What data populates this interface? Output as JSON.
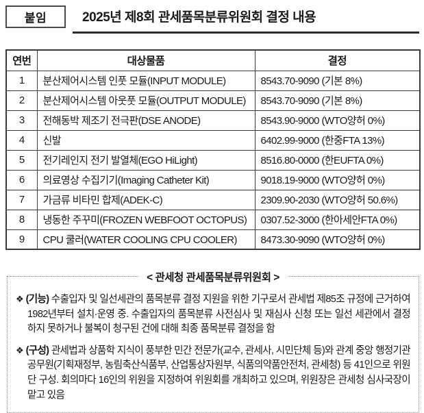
{
  "header": {
    "badge": "붙임",
    "title": "2025년 제8회 관세품목분류위원회 결정 내용"
  },
  "table": {
    "headers": {
      "no": "연번",
      "item": "대상물품",
      "decision": "결정"
    },
    "rows": [
      {
        "no": "1",
        "item": "분산제어시스템 인풋 모듈(INPUT MODULE)",
        "decision": "8543.70-9090 (기본 8%)"
      },
      {
        "no": "2",
        "item": "분산제어시스템 아웃풋 모듈(OUTPUT MODULE)",
        "decision": "8543.70-9090 (기본 8%)"
      },
      {
        "no": "3",
        "item": "전해동박 제조기 전극판(DSE ANODE)",
        "decision": "8543.90-9000 (WTO양허 0%)"
      },
      {
        "no": "4",
        "item": "신발",
        "decision": "6402.99-9000 (한중FTA 13%)"
      },
      {
        "no": "5",
        "item": "전기레인지 전기 발열체(EGO HiLight)",
        "decision": "8516.80-0000 (한EUFTA 0%)"
      },
      {
        "no": "6",
        "item": "의료영상 수집기기(Imaging Catheter Kit)",
        "decision": "9018.19-9000 (WTO양허 0%)"
      },
      {
        "no": "7",
        "item": "가금류 비타민 합제(ADEK-C)",
        "decision": "2309.90-2030 (WTO양허 50.6%)"
      },
      {
        "no": "8",
        "item": "냉동한 주꾸미(FROZEN WEBFOOT OCTOPUS)",
        "decision": "0307.52-3000 (한아세안FTA 0%)"
      },
      {
        "no": "9",
        "item": "CPU 쿨러(WATER COOLING CPU COOLER)",
        "decision": "8473.30-9090 (WTO양허 0%)"
      }
    ]
  },
  "info": {
    "heading": "< 관세청 관세품목분류위원회 >",
    "bullets": [
      {
        "marker": "❖",
        "label": "(기능)",
        "text": "수출입자 및 일선세관의 품목분류 결정 지원을 위한 기구로서 관세법 제85조 규정에 근거하여 1982년부터 설치·운영 중. 수출입자의 품목분류 사전심사 및 재심사 신청 또는 일선 세관에서 결정하지 못하거나 불복이 청구된 건에 대해 최종 품목분류 결정을 함"
      },
      {
        "marker": "❖",
        "label": "(구성)",
        "text": "관세법과 상품학 지식이 풍부한 민간 전문가(교수, 관세사, 시민단체 등)와 관계 중앙 행정기관 공무원(기획재정부, 농림축산식품부, 산업통상자원부, 식품의약품안전처, 관세청) 등 41인으로 위원단 구성. 회의마다 16인의 위원을 지정하여 위원회를 개최하고 있으며, 위원장은 관세청 심사국장이 맡고 있음"
      }
    ]
  },
  "colors": {
    "text": "#1a1a1a",
    "table_border": "#3a3a3a",
    "dotted_border": "#8a8a8a",
    "background": "#ffffff"
  }
}
